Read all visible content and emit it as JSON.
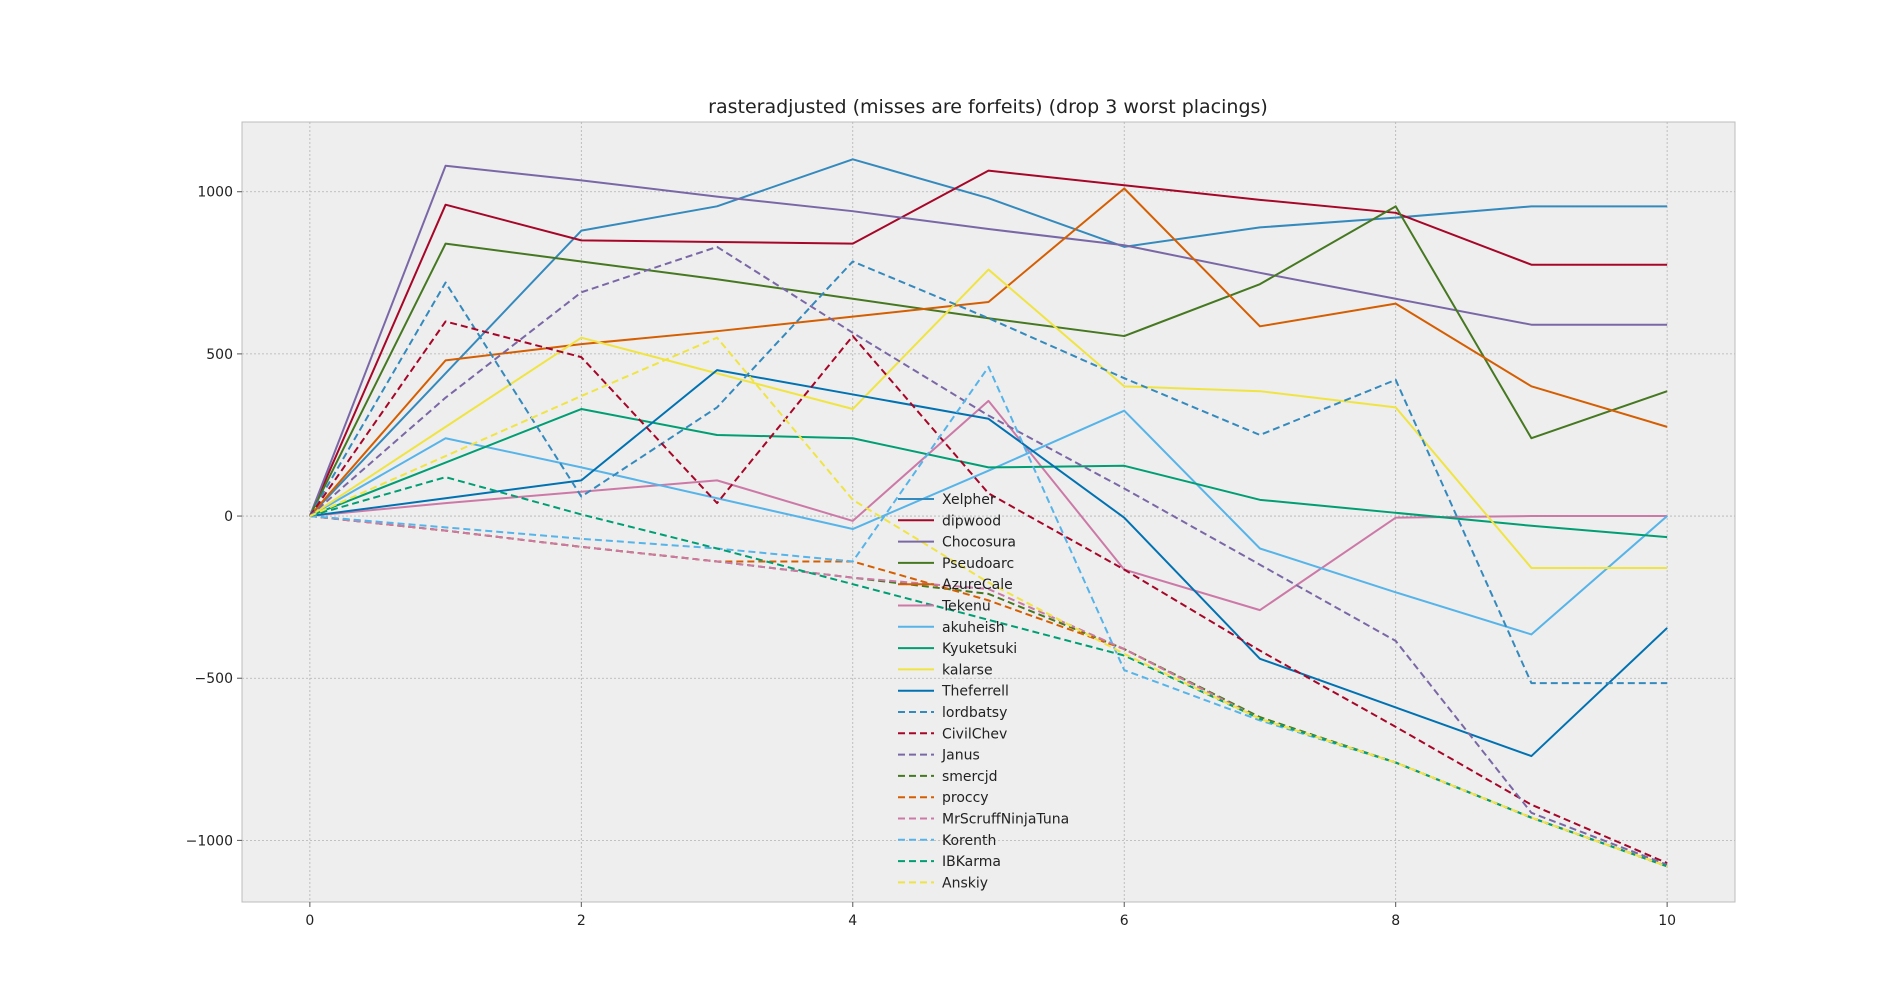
{
  "chart_data": {
    "type": "line",
    "title": "rasteradjusted (misses are forfeits) (drop 3 worst placings)",
    "xlabel": "",
    "ylabel": "",
    "xlim": [
      -0.5,
      10.5
    ],
    "ylim": [
      -1190,
      1215
    ],
    "x_ticks": [
      0,
      2,
      4,
      6,
      8,
      10
    ],
    "y_ticks": [
      1000,
      500,
      0,
      -500,
      -1000
    ],
    "y_tick_labels": [
      "1000",
      "500",
      "0",
      "−500",
      "−1000"
    ],
    "grid": true,
    "legend_position": "center-bottom",
    "x": [
      0,
      1,
      2,
      3,
      4,
      5,
      6,
      7,
      8,
      9,
      10
    ],
    "series": [
      {
        "name": "Xelpher",
        "color": "#348ABD",
        "dash": "solid",
        "values": [
          0,
          440,
          880,
          955,
          1100,
          980,
          830,
          890,
          920,
          955,
          955
        ]
      },
      {
        "name": "dipwood",
        "color": "#A60628",
        "dash": "solid",
        "values": [
          0,
          960,
          850,
          845,
          840,
          1065,
          1020,
          975,
          935,
          775,
          775
        ]
      },
      {
        "name": "Chocosura",
        "color": "#7A68A6",
        "dash": "solid",
        "values": [
          0,
          1080,
          1035,
          985,
          940,
          885,
          835,
          750,
          670,
          590,
          590
        ]
      },
      {
        "name": "Pseudoarc",
        "color": "#467821",
        "dash": "solid",
        "values": [
          0,
          840,
          785,
          730,
          670,
          610,
          555,
          715,
          955,
          240,
          385
        ]
      },
      {
        "name": "AzureCale",
        "color": "#D55E00",
        "dash": "solid",
        "values": [
          0,
          480,
          530,
          570,
          615,
          660,
          1010,
          585,
          655,
          400,
          275
        ]
      },
      {
        "name": "Tekenu",
        "color": "#CC79A7",
        "dash": "solid",
        "values": [
          0,
          40,
          75,
          110,
          -15,
          355,
          -165,
          -290,
          -5,
          0,
          0
        ]
      },
      {
        "name": "akuheish",
        "color": "#56B4E9",
        "dash": "solid",
        "values": [
          0,
          240,
          150,
          55,
          -40,
          140,
          325,
          -100,
          -235,
          -365,
          0
        ]
      },
      {
        "name": "Kyuketsuki",
        "color": "#009E73",
        "dash": "solid",
        "values": [
          0,
          165,
          330,
          250,
          240,
          150,
          155,
          50,
          10,
          -30,
          -65
        ]
      },
      {
        "name": "kalarse",
        "color": "#F0E442",
        "dash": "solid",
        "values": [
          0,
          275,
          550,
          440,
          330,
          760,
          400,
          385,
          335,
          -160,
          -160
        ]
      },
      {
        "name": "Theferrell",
        "color": "#0072B2",
        "dash": "solid",
        "values": [
          0,
          55,
          110,
          450,
          375,
          300,
          -5,
          -440,
          -590,
          -740,
          -345
        ]
      },
      {
        "name": "lordbatsy",
        "color": "#348ABD",
        "dash": "dashed",
        "values": [
          0,
          720,
          60,
          335,
          785,
          610,
          425,
          250,
          420,
          -515,
          -515
        ]
      },
      {
        "name": "CivilChev",
        "color": "#A60628",
        "dash": "dashed",
        "values": [
          0,
          600,
          490,
          40,
          555,
          70,
          -165,
          -415,
          -650,
          -890,
          -1070
        ]
      },
      {
        "name": "Janus",
        "color": "#7A68A6",
        "dash": "dashed",
        "values": [
          0,
          365,
          690,
          830,
          565,
          310,
          85,
          -150,
          -385,
          -915,
          -1075
        ]
      },
      {
        "name": "smercjd",
        "color": "#467821",
        "dash": "dashed",
        "values": [
          0,
          -45,
          -95,
          -140,
          -190,
          -240,
          -410,
          -620,
          -760,
          -930,
          -1080
        ]
      },
      {
        "name": "proccy",
        "color": "#D55E00",
        "dash": "dashed",
        "values": [
          0,
          -45,
          -95,
          -140,
          -140,
          -260,
          -410,
          -625,
          -760,
          -930,
          -1080
        ]
      },
      {
        "name": "MrScruffNinjaTuna",
        "color": "#CC79A7",
        "dash": "dashed",
        "values": [
          0,
          -45,
          -95,
          -140,
          -190,
          -225,
          -410,
          -625,
          -760,
          -930,
          -1080
        ]
      },
      {
        "name": "Korenth",
        "color": "#56B4E9",
        "dash": "dashed",
        "values": [
          0,
          -35,
          -70,
          -100,
          -140,
          460,
          -475,
          -630,
          -760,
          -930,
          -1080
        ]
      },
      {
        "name": "IBKarma",
        "color": "#009E73",
        "dash": "dashed",
        "values": [
          0,
          120,
          5,
          -100,
          -210,
          -320,
          -430,
          -625,
          -760,
          -930,
          -1080
        ]
      },
      {
        "name": "Anskiy",
        "color": "#F0E442",
        "dash": "dashed",
        "values": [
          0,
          185,
          370,
          550,
          50,
          -205,
          -425,
          -625,
          -760,
          -930,
          -1080
        ]
      }
    ]
  }
}
